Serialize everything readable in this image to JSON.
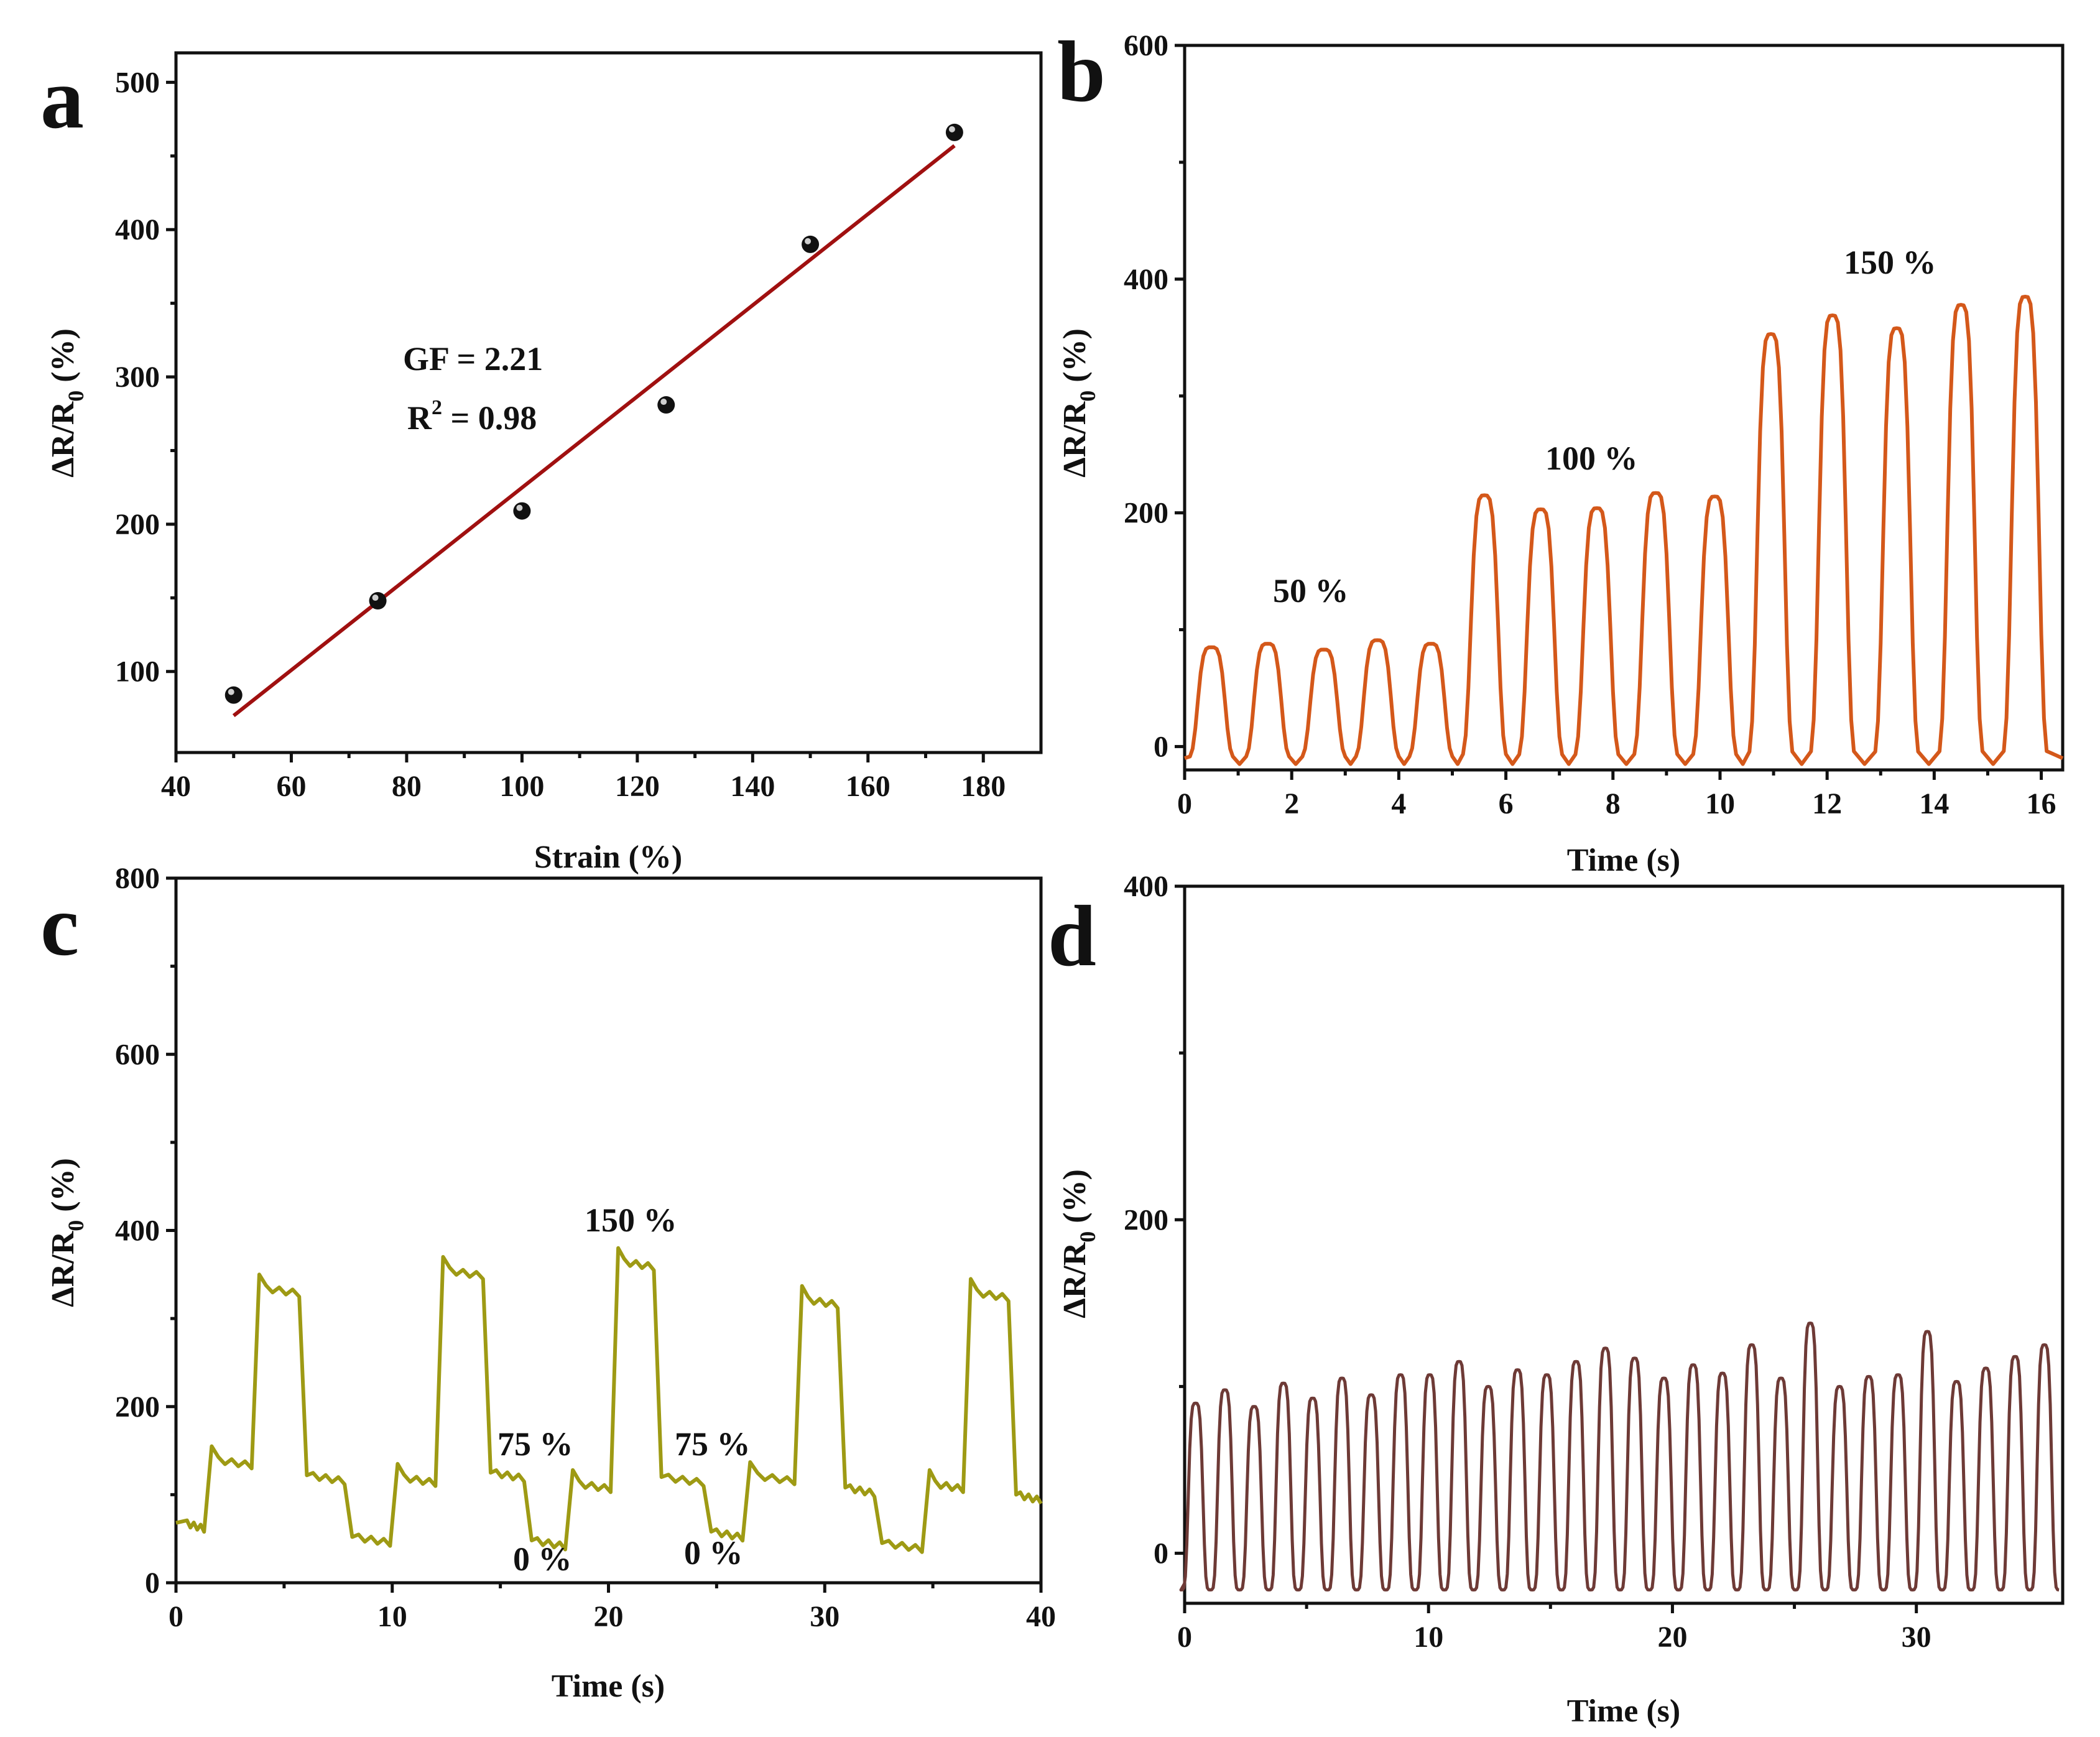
{
  "colors": {
    "a_fit": "#a01010",
    "a_points": "#111111",
    "b_line": "#d4581a",
    "c_line": "#9e9a14",
    "d_line": "#6e3a36"
  },
  "chart_data": [
    {
      "id": "a",
      "panel_label": "a",
      "type": "scatter",
      "xlabel": "Strain (%)",
      "ylabel": "ΔR/R0 (%)",
      "xlim": [
        40,
        190
      ],
      "ylim": [
        45,
        520
      ],
      "xticks": [
        40,
        60,
        80,
        100,
        120,
        140,
        160,
        180
      ],
      "yticks": [
        100,
        200,
        300,
        400,
        500
      ],
      "series": [
        {
          "name": "measured",
          "x": [
            50,
            75,
            100,
            125,
            150,
            175
          ],
          "y": [
            84,
            148,
            209,
            281,
            390,
            466
          ]
        },
        {
          "name": "linear fit",
          "x": [
            50,
            175
          ],
          "y": [
            70,
            457
          ]
        }
      ],
      "annotations": [
        "GF = 2.21",
        "R2 = 0.98"
      ]
    },
    {
      "id": "b",
      "panel_label": "b",
      "type": "line",
      "xlabel": "Time (s)",
      "ylabel": "ΔR/R0 (%)",
      "xlim": [
        0,
        16.4
      ],
      "ylim": [
        -20,
        600
      ],
      "xticks": [
        0,
        2,
        4,
        6,
        8,
        10,
        12,
        14,
        16
      ],
      "yticks": [
        0,
        200,
        400,
        600
      ],
      "cycle_peaks_t": [
        0.5,
        1.55,
        2.6,
        3.6,
        4.6,
        5.6,
        6.65,
        7.7,
        8.8,
        9.9,
        10.95,
        12.1,
        13.3,
        14.5,
        15.7
      ],
      "cycle_peaks_y": [
        85,
        88,
        83,
        91,
        88,
        215,
        203,
        204,
        217,
        214,
        353,
        369,
        358,
        378,
        385
      ],
      "baseline_y": -10,
      "annotations": [
        "50 %",
        "100 %",
        "150 %"
      ]
    },
    {
      "id": "c",
      "panel_label": "c",
      "type": "line",
      "xlabel": "Time (s)",
      "ylabel": "ΔR/R0 (%)",
      "xlim": [
        0,
        40
      ],
      "ylim": [
        0,
        800
      ],
      "xticks": [
        0,
        10,
        20,
        30,
        40
      ],
      "yticks": [
        0,
        200,
        400,
        600,
        800
      ],
      "step_times": [
        0,
        1.3,
        3.5,
        5.7,
        7.8,
        9.9,
        12.0,
        14.2,
        16.1,
        18.0,
        20.1,
        22.1,
        24.4,
        26.2,
        28.6,
        30.6,
        32.3,
        34.5,
        36.4,
        38.5,
        40
      ],
      "step_levels": [
        68,
        140,
        335,
        122,
        52,
        120,
        355,
        125,
        48,
        113,
        365,
        120,
        58,
        122,
        322,
        108,
        45,
        113,
        330,
        100
      ],
      "annotations": [
        "150 %",
        "75 %",
        "75 %",
        "0 %",
        "0 %"
      ]
    },
    {
      "id": "d",
      "panel_label": "d",
      "type": "line",
      "xlabel": "Time (s)",
      "ylabel": "ΔR/R0 (%)",
      "xlim": [
        0,
        36
      ],
      "ylim": [
        -30,
        400
      ],
      "xticks": [
        0,
        10,
        20,
        30
      ],
      "yticks": [
        0,
        200,
        400
      ],
      "cycle_count": 30,
      "cycle_period_s": 1.2,
      "cycle_peaks_y": [
        90,
        98,
        88,
        102,
        93,
        105,
        95,
        107,
        107,
        115,
        100,
        110,
        107,
        115,
        123,
        117,
        105,
        113,
        108,
        125,
        105,
        138,
        100,
        106,
        107,
        133,
        103,
        111,
        118,
        125
      ],
      "trough_y": -22
    }
  ]
}
